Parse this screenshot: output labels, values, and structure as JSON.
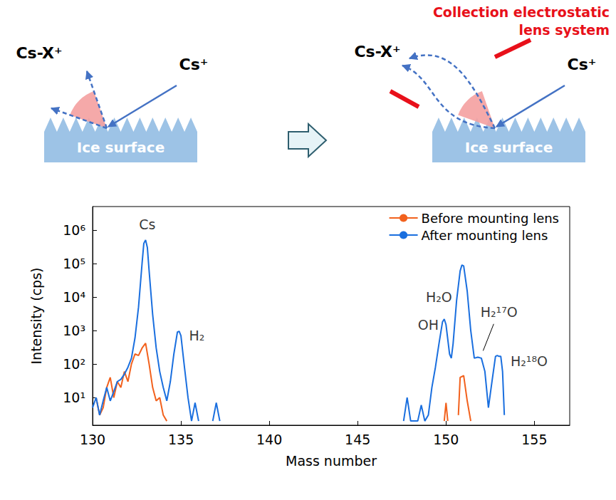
{
  "diagram": {
    "panels": [
      {
        "product_label": "Cs-X⁺",
        "beam_label": "Cs⁺",
        "surface_label": "Ice surface"
      },
      {
        "product_label": "Cs-X⁺",
        "beam_label": "Cs⁺",
        "surface_label": "Ice surface",
        "lens_label": "Collection electrostatic lens system"
      }
    ]
  },
  "chart_data": {
    "type": "line",
    "x_label": "Mass number",
    "y_label": "Intensity (cps)",
    "xlim": [
      130,
      157
    ],
    "xticks": [
      130,
      135,
      140,
      145,
      150,
      155
    ],
    "ylim": [
      1.5,
      5000000
    ],
    "yticks": [
      {
        "value": 10,
        "label": "10¹"
      },
      {
        "value": 100,
        "label": "10²"
      },
      {
        "value": 1000,
        "label": "10³"
      },
      {
        "value": 10000,
        "label": "10⁴"
      },
      {
        "value": 100000,
        "label": "10⁵"
      },
      {
        "value": 1000000,
        "label": "10⁶"
      }
    ],
    "log": "y",
    "grid": false,
    "legend": "upper right",
    "series": [
      {
        "name": "Before mounting lens",
        "color": "#f2611d",
        "x": [
          130.2,
          130.4,
          130.6,
          130.8,
          131.0,
          131.2,
          131.4,
          131.6,
          131.8,
          132.0,
          132.2,
          132.4,
          132.6,
          132.8,
          133.0,
          133.2,
          133.4,
          133.6,
          133.8,
          134.0,
          134.2,
          134.4,
          149.9,
          150.0,
          150.1,
          150.2,
          150.7,
          150.8,
          151.0,
          151.2,
          151.4
        ],
        "values": [
          10,
          3,
          5,
          20,
          40,
          10,
          30,
          20,
          60,
          30,
          100,
          200,
          180,
          300,
          420,
          100,
          20,
          8,
          10,
          3,
          2,
          null,
          2,
          7,
          2,
          null,
          3,
          40,
          45,
          8,
          2
        ]
      },
      {
        "name": "After mounting lens",
        "color": "#1a6fdf",
        "x": [
          130.0,
          130.2,
          130.4,
          130.6,
          130.8,
          131.0,
          131.2,
          131.4,
          131.6,
          131.8,
          132.0,
          132.2,
          132.4,
          132.6,
          132.8,
          132.9,
          133.0,
          133.1,
          133.2,
          133.4,
          133.6,
          133.8,
          134.0,
          134.2,
          134.4,
          134.6,
          134.8,
          134.9,
          135.0,
          135.2,
          135.4,
          135.6,
          135.8,
          136.0,
          136.2,
          136.8,
          137.0,
          137.2,
          137.4,
          147.6,
          147.8,
          148.0,
          148.4,
          148.6,
          148.8,
          149.0,
          149.2,
          149.4,
          149.6,
          149.8,
          149.9,
          150.0,
          150.2,
          150.3,
          150.4,
          150.6,
          150.8,
          150.9,
          151.0,
          151.2,
          151.4,
          151.6,
          151.8,
          152.0,
          152.2,
          152.4,
          152.6,
          152.8,
          152.9,
          153.0,
          153.1,
          153.2,
          153.3
        ],
        "values": [
          5,
          10,
          3,
          8,
          20,
          8,
          15,
          30,
          35,
          50,
          80,
          150,
          600,
          5000,
          100000,
          400000,
          500000,
          300000,
          60000,
          3000,
          300,
          60,
          20,
          8,
          30,
          200,
          900,
          950,
          700,
          80,
          10,
          2,
          7,
          2,
          null,
          2,
          7,
          2,
          null,
          2,
          10,
          2,
          2,
          6,
          2,
          3,
          20,
          80,
          400,
          1800,
          2200,
          1500,
          200,
          150,
          400,
          8000,
          60000,
          90000,
          85000,
          15000,
          1000,
          150,
          160,
          150,
          60,
          5,
          30,
          170,
          180,
          170,
          170,
          60,
          3
        ]
      }
    ],
    "annotations": [
      {
        "text": "Cs",
        "x": 133.1,
        "y": 1500000
      },
      {
        "text": "H₂",
        "x": 135.9,
        "y": 700
      },
      {
        "text": "H₂O",
        "x": 149.6,
        "y": 10000
      },
      {
        "text": "OH",
        "x": 149.0,
        "y": 1500
      },
      {
        "text": "H₂¹⁷O",
        "x": 153.0,
        "y": 3500,
        "arrow_to": [
          152.1,
          250
        ]
      },
      {
        "text": "H₂¹⁸O",
        "x": 154.7,
        "y": 120
      }
    ]
  }
}
